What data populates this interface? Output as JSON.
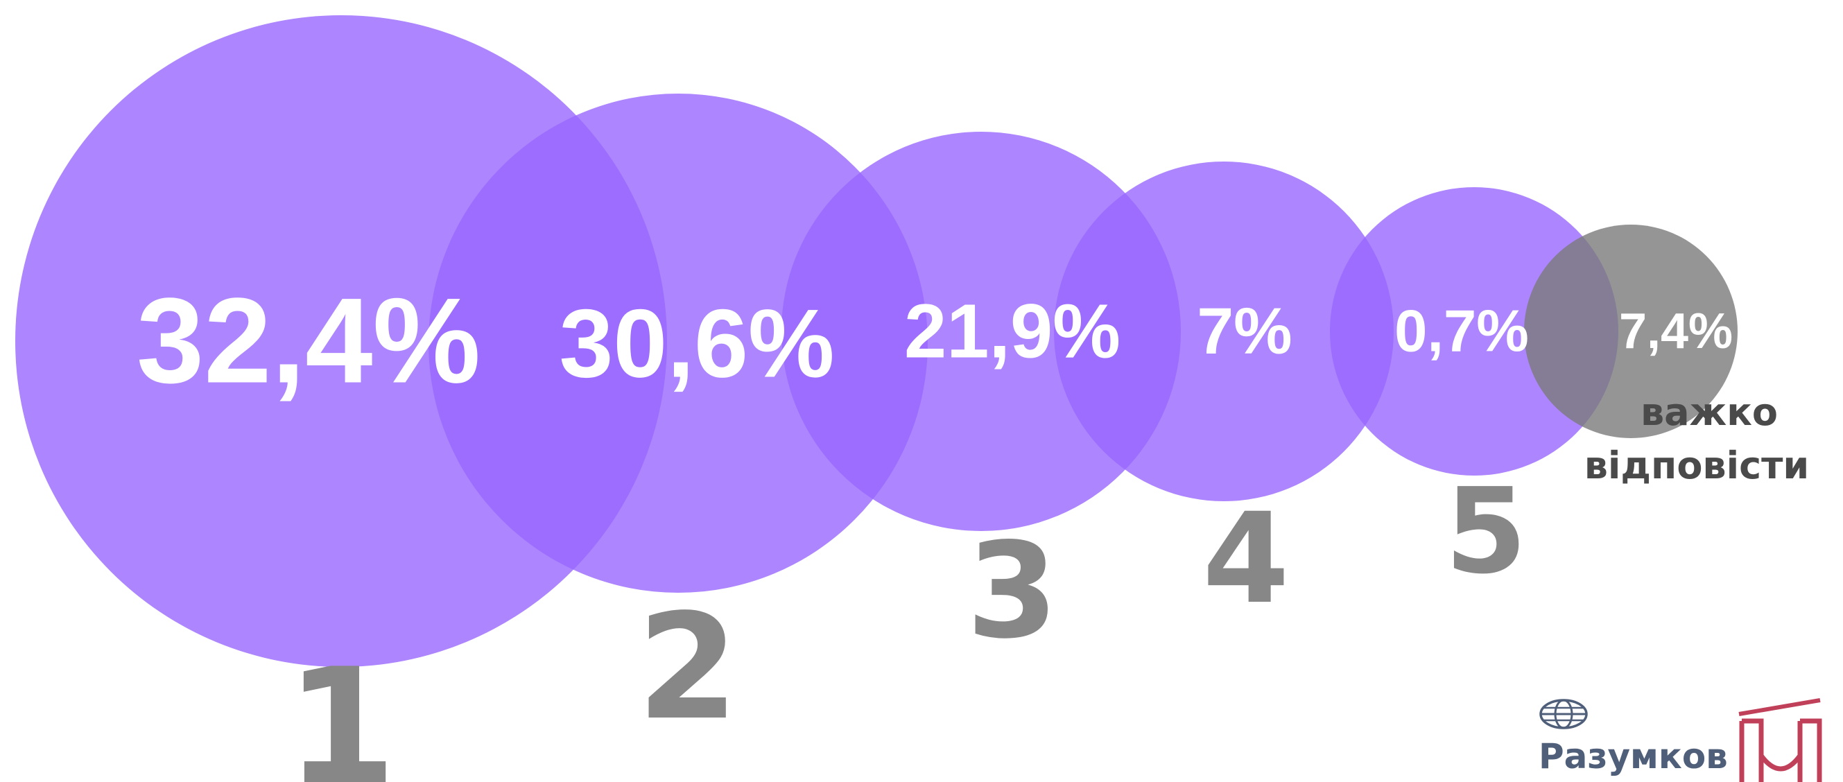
{
  "chart_data": {
    "type": "bubble",
    "categories": [
      "1",
      "2",
      "3",
      "4",
      "5",
      "важко відповісти"
    ],
    "values": [
      32.4,
      30.6,
      21.9,
      7,
      0.7,
      7.4
    ],
    "value_labels": [
      "32,4%",
      "30,6%",
      "21,9%",
      "7%",
      "0,7%",
      "7,4%"
    ],
    "rank_labels": [
      "1",
      "2",
      "3",
      "4",
      "5"
    ],
    "dk_label_lines": [
      "важко",
      "відповісти"
    ]
  },
  "colors": {
    "bubble": "#9966ff",
    "bubble_dk": "#7a7a7a",
    "rank_text": "#878787",
    "value_text": "#ffffff"
  },
  "logo": {
    "text": "Разумков",
    "icons": [
      "globe-icon",
      "book-logo-icon"
    ]
  }
}
